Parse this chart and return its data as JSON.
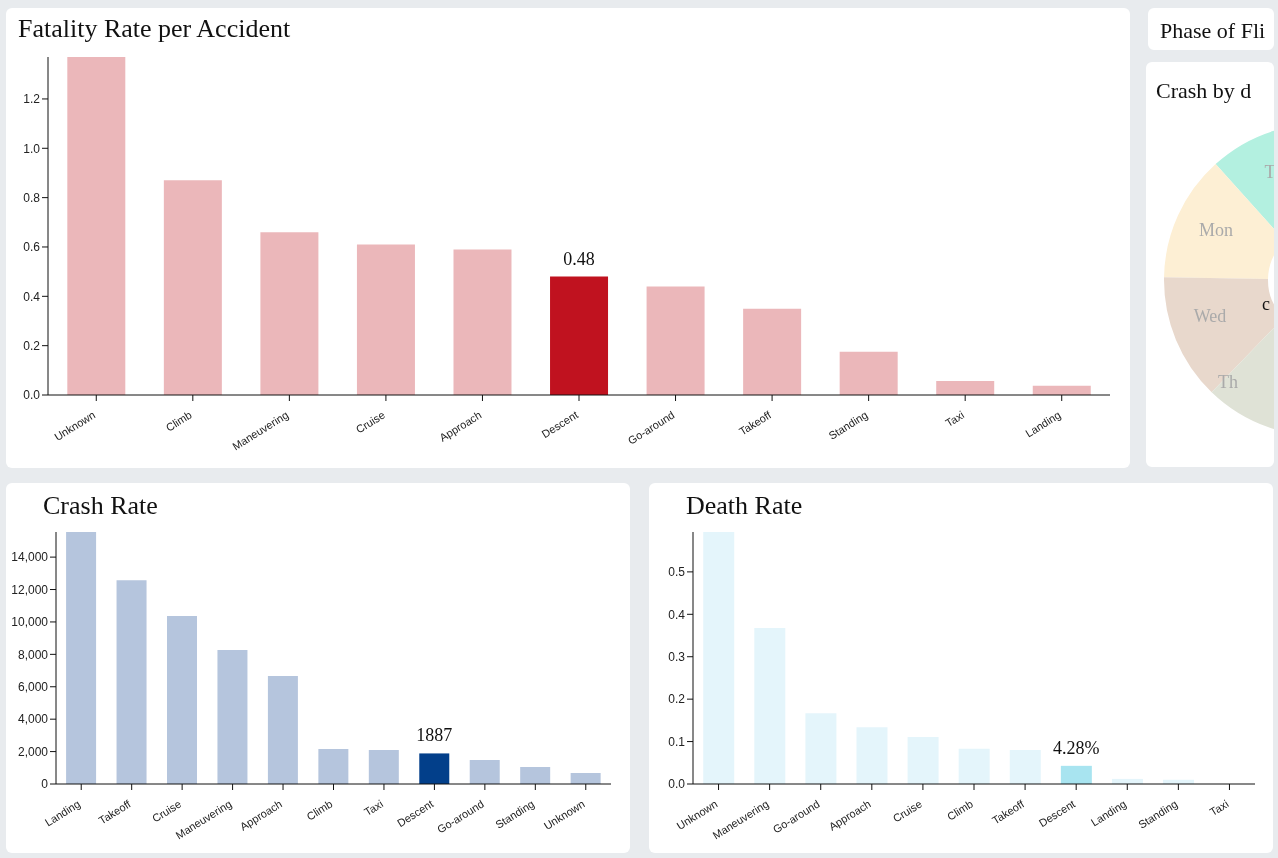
{
  "chart_data": [
    {
      "type": "bar",
      "title": "Fatality Rate per Accident",
      "categories": [
        "Unknown",
        "Climb",
        "Maneuvering",
        "Cruise",
        "Approach",
        "Descent",
        "Go-around",
        "Takeoff",
        "Standing",
        "Taxi",
        "Landing"
      ],
      "values": [
        1.37,
        0.87,
        0.66,
        0.61,
        0.59,
        0.48,
        0.44,
        0.35,
        0.175,
        0.057,
        0.037
      ],
      "colors": [
        "#ebb7ba",
        "#ebb7ba",
        "#ebb7ba",
        "#ebb7ba",
        "#ebb7ba",
        "#c0121f",
        "#ebb7ba",
        "#ebb7ba",
        "#ebb7ba",
        "#ebb7ba",
        "#ebb7ba"
      ],
      "value_labels": [
        null,
        null,
        null,
        null,
        null,
        "0.48",
        null,
        null,
        null,
        null,
        null
      ],
      "ylim": [
        0,
        1.37
      ],
      "yticks": [
        {
          "value": 0,
          "label": "0.0"
        },
        0.2,
        0.4,
        0.6,
        0.8,
        {
          "value": 1,
          "label": "1.0"
        },
        1.2
      ]
    },
    {
      "type": "other",
      "title": "Phase of Fli"
    },
    {
      "type": "other",
      "title": "Crash by d",
      "annotations": [
        "T",
        "Mon",
        "Wed",
        "Th",
        "c"
      ],
      "colors": [
        "#b3f0e0",
        "#fdefd4",
        "#e8d8cc",
        "#dfe2d6"
      ]
    },
    {
      "type": "bar",
      "title": "Crash Rate",
      "categories": [
        "Landing",
        "Takeoff",
        "Cruise",
        "Maneuvering",
        "Approach",
        "Climb",
        "Taxi",
        "Descent",
        "Go-around",
        "Standing",
        "Unknown"
      ],
      "values": [
        15550,
        12580,
        10360,
        8270,
        6660,
        2160,
        2100,
        1887,
        1480,
        1050,
        680
      ],
      "colors": [
        "#b5c5dd",
        "#b5c5dd",
        "#b5c5dd",
        "#b5c5dd",
        "#b5c5dd",
        "#b5c5dd",
        "#b5c5dd",
        "#023f8a",
        "#b5c5dd",
        "#b5c5dd",
        "#b5c5dd"
      ],
      "value_labels": [
        null,
        null,
        null,
        null,
        null,
        null,
        null,
        "1887",
        null,
        null,
        null
      ],
      "ylim": [
        0,
        15550
      ],
      "yticks": [
        0,
        {
          "value": 2000,
          "label": "2,000"
        },
        {
          "value": 4000,
          "label": "4,000"
        },
        {
          "value": 6000,
          "label": "6,000"
        },
        {
          "value": 8000,
          "label": "8,000"
        },
        {
          "value": 10000,
          "label": "10,000"
        },
        {
          "value": 12000,
          "label": "12,000"
        },
        {
          "value": 14000,
          "label": "14,000"
        }
      ]
    },
    {
      "type": "bar",
      "title": "Death Rate",
      "categories": [
        "Unknown",
        "Maneuvering",
        "Go-around",
        "Approach",
        "Cruise",
        "Climb",
        "Takeoff",
        "Descent",
        "Landing",
        "Standing",
        "Taxi"
      ],
      "values": [
        0.594,
        0.368,
        0.167,
        0.134,
        0.111,
        0.083,
        0.08,
        0.0428,
        0.012,
        0.01,
        null
      ],
      "colors": [
        "#e4f5fb",
        "#e4f5fb",
        "#e4f5fb",
        "#e4f5fb",
        "#e4f5fb",
        "#e4f5fb",
        "#e4f5fb",
        "#a8e4f0",
        "#e4f5fb",
        "#e4f5fb",
        "#e4f5fb"
      ],
      "value_labels": [
        null,
        null,
        null,
        null,
        null,
        null,
        null,
        "4.28%",
        null,
        null,
        null
      ],
      "ylim": [
        0,
        0.594
      ],
      "yticks": [
        {
          "value": 0,
          "label": "0.0"
        },
        0.1,
        0.2,
        0.3,
        0.4,
        0.5
      ]
    }
  ]
}
